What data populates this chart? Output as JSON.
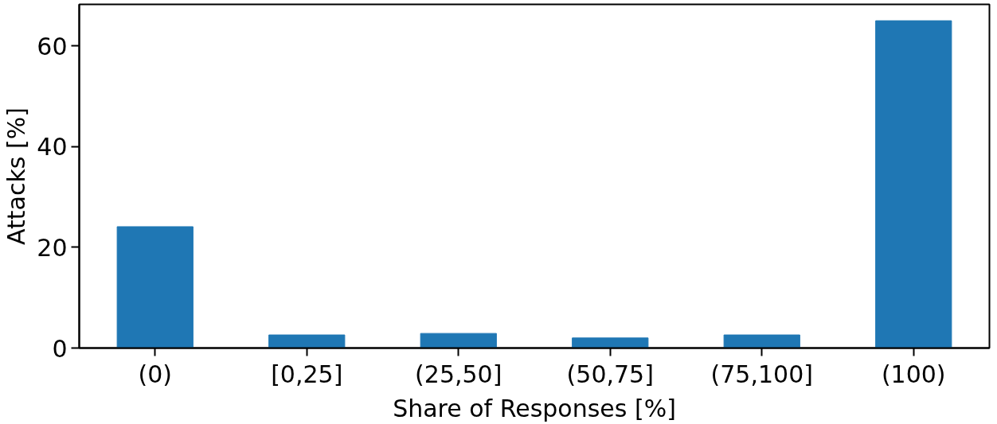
{
  "chart_data": {
    "type": "bar",
    "xlabel": "Share of Responses [%]",
    "ylabel": "Attacks [%]",
    "categories": [
      "(0)",
      "[0,25]",
      "(25,50]",
      "(50,75]",
      "(75,100]",
      "(100)"
    ],
    "values": [
      24.1,
      2.6,
      2.9,
      2.0,
      2.6,
      65.0
    ],
    "color": "#1f77b4",
    "ylim": [
      0,
      68.25
    ],
    "yticks": [
      0,
      20,
      40,
      60
    ],
    "grid": false
  }
}
